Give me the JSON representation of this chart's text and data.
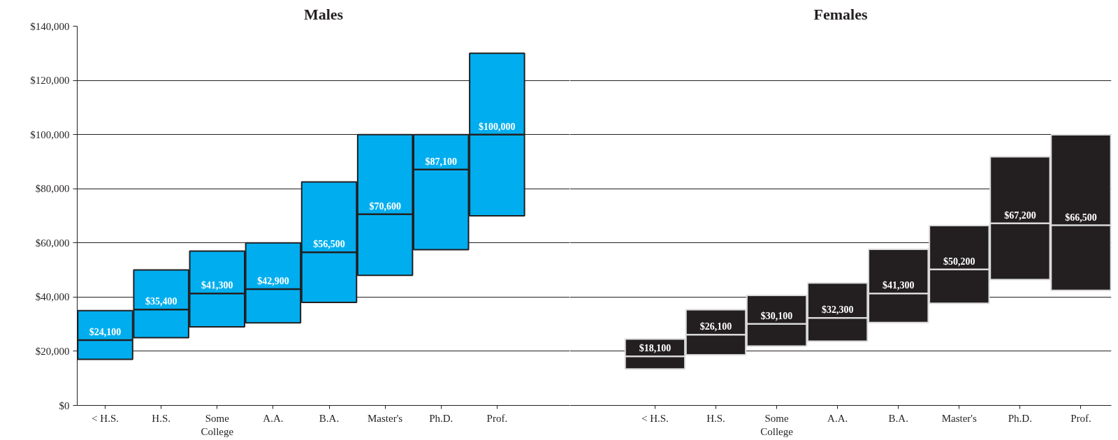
{
  "chart_data": [
    {
      "type": "box",
      "title": "Males",
      "categories": [
        "< H.S.",
        "H.S.",
        "Some College",
        "A.A.",
        "B.A.",
        "Master's",
        "Ph.D.",
        "Prof."
      ],
      "color": "#00aeef",
      "boxes": [
        {
          "low": 17000,
          "q1": 17000,
          "median": 24100,
          "q3": 35000,
          "high": 35000
        },
        {
          "low": 25000,
          "q1": 25000,
          "median": 35400,
          "q3": 50000,
          "high": 50000
        },
        {
          "low": 29000,
          "q1": 29000,
          "median": 41300,
          "q3": 57000,
          "high": 57000
        },
        {
          "low": 30500,
          "q1": 30500,
          "median": 42900,
          "q3": 60000,
          "high": 60000
        },
        {
          "low": 38000,
          "q1": 38000,
          "median": 56500,
          "q3": 82500,
          "high": 82500
        },
        {
          "low": 48000,
          "q1": 48000,
          "median": 70600,
          "q3": 100000,
          "high": 100000
        },
        {
          "low": 57500,
          "q1": 57500,
          "median": 87100,
          "q3": 100000,
          "high": 100000
        },
        {
          "low": 70000,
          "q1": 70000,
          "median": 100000,
          "q3": 130000,
          "high": 130000
        }
      ],
      "value_labels": [
        "$24,100",
        "$35,400",
        "$41,300",
        "$42,900",
        "$56,500",
        "$70,600",
        "$87,100",
        "$100,000"
      ],
      "ylim": [
        0,
        140000
      ],
      "yticks": [
        {
          "value": 0,
          "label": "$0"
        },
        {
          "value": 20000,
          "label": "$20,000"
        },
        {
          "value": 40000,
          "label": "$40,000"
        },
        {
          "value": 60000,
          "label": "$60,000"
        },
        {
          "value": 80000,
          "label": "$80,000"
        },
        {
          "value": 100000,
          "label": "$100,000"
        },
        {
          "value": 120000,
          "label": "$120,000"
        },
        {
          "value": 140000,
          "label": "$140,000"
        }
      ],
      "grid": "y"
    },
    {
      "type": "box",
      "title": "Females",
      "categories": [
        "< H.S.",
        "H.S.",
        "Some College",
        "A.A.",
        "B.A.",
        "Master's",
        "Ph.D.",
        "Prof."
      ],
      "color": "#231f20",
      "boxes": [
        {
          "low": 13500,
          "q1": 13500,
          "median": 18100,
          "q3": 24500,
          "high": 24500
        },
        {
          "low": 18700,
          "q1": 18700,
          "median": 26100,
          "q3": 35300,
          "high": 35300
        },
        {
          "low": 21900,
          "q1": 21900,
          "median": 30100,
          "q3": 40600,
          "high": 40600
        },
        {
          "low": 23700,
          "q1": 23700,
          "median": 32300,
          "q3": 45200,
          "high": 45200
        },
        {
          "low": 30600,
          "q1": 30600,
          "median": 41300,
          "q3": 57600,
          "high": 57600
        },
        {
          "low": 37700,
          "q1": 37700,
          "median": 50200,
          "q3": 66400,
          "high": 66400
        },
        {
          "low": 46500,
          "q1": 46500,
          "median": 67200,
          "q3": 91800,
          "high": 91800
        },
        {
          "low": 42500,
          "q1": 42500,
          "median": 66500,
          "q3": 99900,
          "high": 99900
        }
      ],
      "value_labels": [
        "$18,100",
        "$26,100",
        "$30,100",
        "$32,300",
        "$41,300",
        "$50,200",
        "$67,200",
        "$66,500"
      ],
      "ylim": [
        0,
        140000
      ],
      "yticks": [
        {
          "value": 0,
          "label": "$0"
        },
        {
          "value": 20000,
          "label": "$20,000"
        },
        {
          "value": 40000,
          "label": "$40,000"
        },
        {
          "value": 60000,
          "label": "$60,000"
        },
        {
          "value": 80000,
          "label": "$80,000"
        },
        {
          "value": 100000,
          "label": "$100,000"
        },
        {
          "value": 120000,
          "label": "$120,000"
        },
        {
          "value": 140000,
          "label": "$140,000"
        }
      ],
      "grid": "y",
      "tick_labels": "x"
    }
  ]
}
